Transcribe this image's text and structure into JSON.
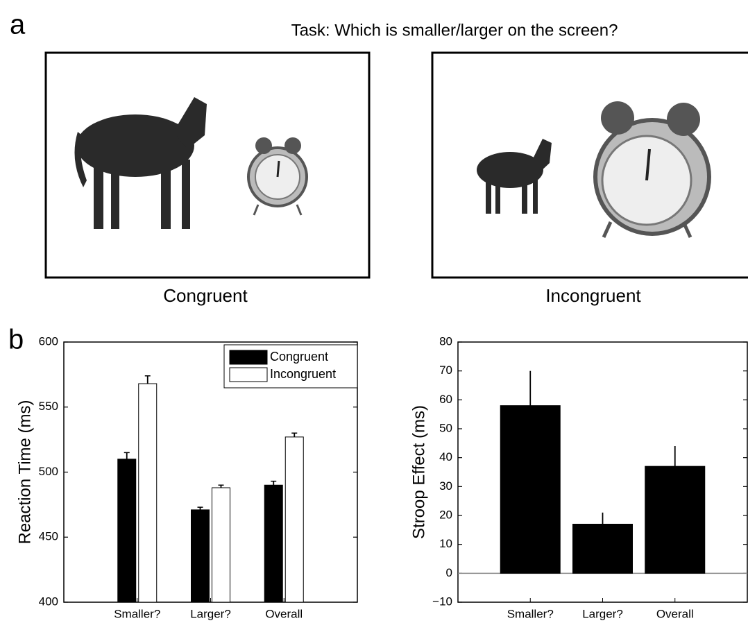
{
  "panel_a": {
    "label": "a",
    "title": "Task: Which is smaller/larger on the screen?",
    "captions": [
      "Congruent",
      "Incongruent"
    ]
  },
  "panel_b": {
    "label": "b"
  },
  "chart_data": [
    {
      "type": "bar",
      "ylabel": "Reaction Time (ms)",
      "categories": [
        "Smaller?",
        "Larger?",
        "Overall"
      ],
      "series": [
        {
          "name": "Congruent",
          "color": "#000000",
          "values": [
            510,
            471,
            490
          ],
          "errors": [
            5,
            2,
            3
          ]
        },
        {
          "name": "Incongruent",
          "color": "#ffffff",
          "values": [
            568,
            488,
            527
          ],
          "errors": [
            6,
            2,
            3
          ]
        }
      ],
      "ylim": [
        400,
        600
      ],
      "yticks": [
        400,
        450,
        500,
        550,
        600
      ],
      "legend": "upper-right"
    },
    {
      "type": "bar",
      "ylabel": "Stroop Effect (ms)",
      "categories": [
        "Smaller?",
        "Larger?",
        "Overall"
      ],
      "values": [
        58,
        17,
        37
      ],
      "errors": [
        12,
        4,
        7
      ],
      "color": "#000000",
      "ylim": [
        -10,
        80
      ],
      "yticks": [
        {
          "value": -10,
          "label": "−10"
        },
        0,
        10,
        20,
        30,
        40,
        50,
        60,
        70,
        80
      ]
    }
  ]
}
